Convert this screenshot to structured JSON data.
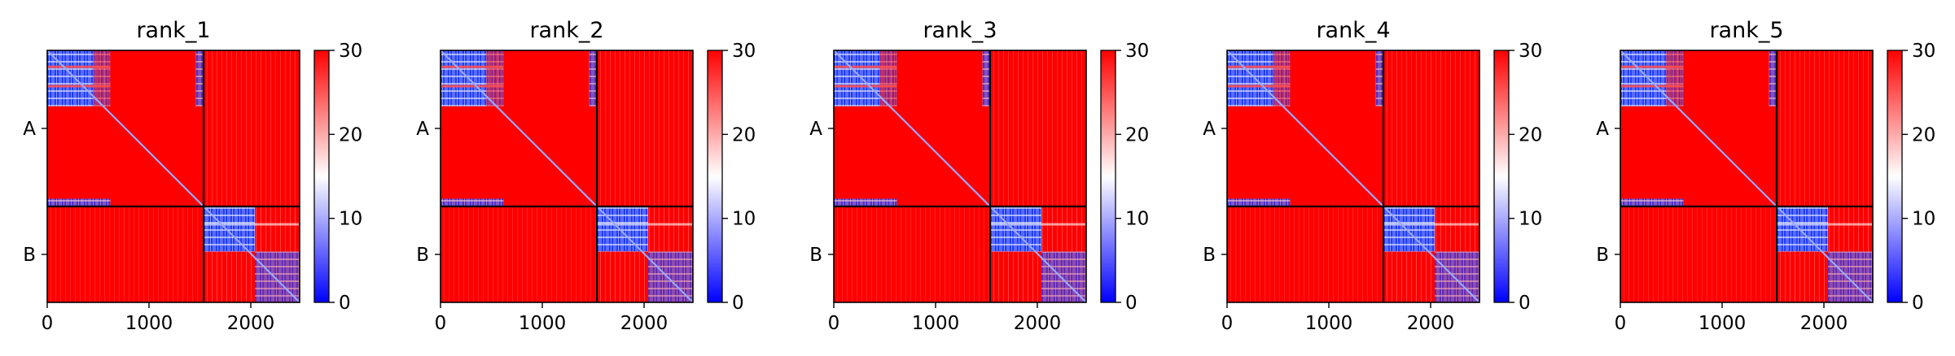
{
  "figure": {
    "colorbar": {
      "vmin": 0,
      "vmax": 30,
      "ticks": [
        0,
        10,
        20,
        30
      ],
      "colormap": "bwr",
      "colors": {
        "low": "#0000ff",
        "mid": "#ffffff",
        "high": "#ff0000"
      }
    }
  },
  "chart_data": [
    {
      "type": "heatmap",
      "title": "rank_1",
      "x_range": [
        0,
        2480
      ],
      "x_ticks": [
        0,
        1000,
        2000
      ],
      "y_ticks": [
        "A",
        "B"
      ],
      "chain_boundary": 1536,
      "chains": [
        {
          "label": "A",
          "range": [
            0,
            1536
          ]
        },
        {
          "label": "B",
          "range": [
            1536,
            2480
          ]
        }
      ],
      "color_range": [
        0,
        30
      ]
    },
    {
      "type": "heatmap",
      "title": "rank_2",
      "x_range": [
        0,
        2480
      ],
      "x_ticks": [
        0,
        1000,
        2000
      ],
      "y_ticks": [
        "A",
        "B"
      ],
      "chain_boundary": 1536,
      "chains": [
        {
          "label": "A",
          "range": [
            0,
            1536
          ]
        },
        {
          "label": "B",
          "range": [
            1536,
            2480
          ]
        }
      ],
      "color_range": [
        0,
        30
      ]
    },
    {
      "type": "heatmap",
      "title": "rank_3",
      "x_range": [
        0,
        2480
      ],
      "x_ticks": [
        0,
        1000,
        2000
      ],
      "y_ticks": [
        "A",
        "B"
      ],
      "chain_boundary": 1536,
      "chains": [
        {
          "label": "A",
          "range": [
            0,
            1536
          ]
        },
        {
          "label": "B",
          "range": [
            1536,
            2480
          ]
        }
      ],
      "color_range": [
        0,
        30
      ]
    },
    {
      "type": "heatmap",
      "title": "rank_4",
      "x_range": [
        0,
        2480
      ],
      "x_ticks": [
        0,
        1000,
        2000
      ],
      "y_ticks": [
        "A",
        "B"
      ],
      "chain_boundary": 1536,
      "chains": [
        {
          "label": "A",
          "range": [
            0,
            1536
          ]
        },
        {
          "label": "B",
          "range": [
            1536,
            2480
          ]
        }
      ],
      "color_range": [
        0,
        30
      ]
    },
    {
      "type": "heatmap",
      "title": "rank_5",
      "x_range": [
        0,
        2480
      ],
      "x_ticks": [
        0,
        1000,
        2000
      ],
      "y_ticks": [
        "A",
        "B"
      ],
      "chain_boundary": 1536,
      "chains": [
        {
          "label": "A",
          "range": [
            0,
            1536
          ]
        },
        {
          "label": "B",
          "range": [
            1536,
            2480
          ]
        }
      ],
      "color_range": [
        0,
        30
      ]
    }
  ]
}
